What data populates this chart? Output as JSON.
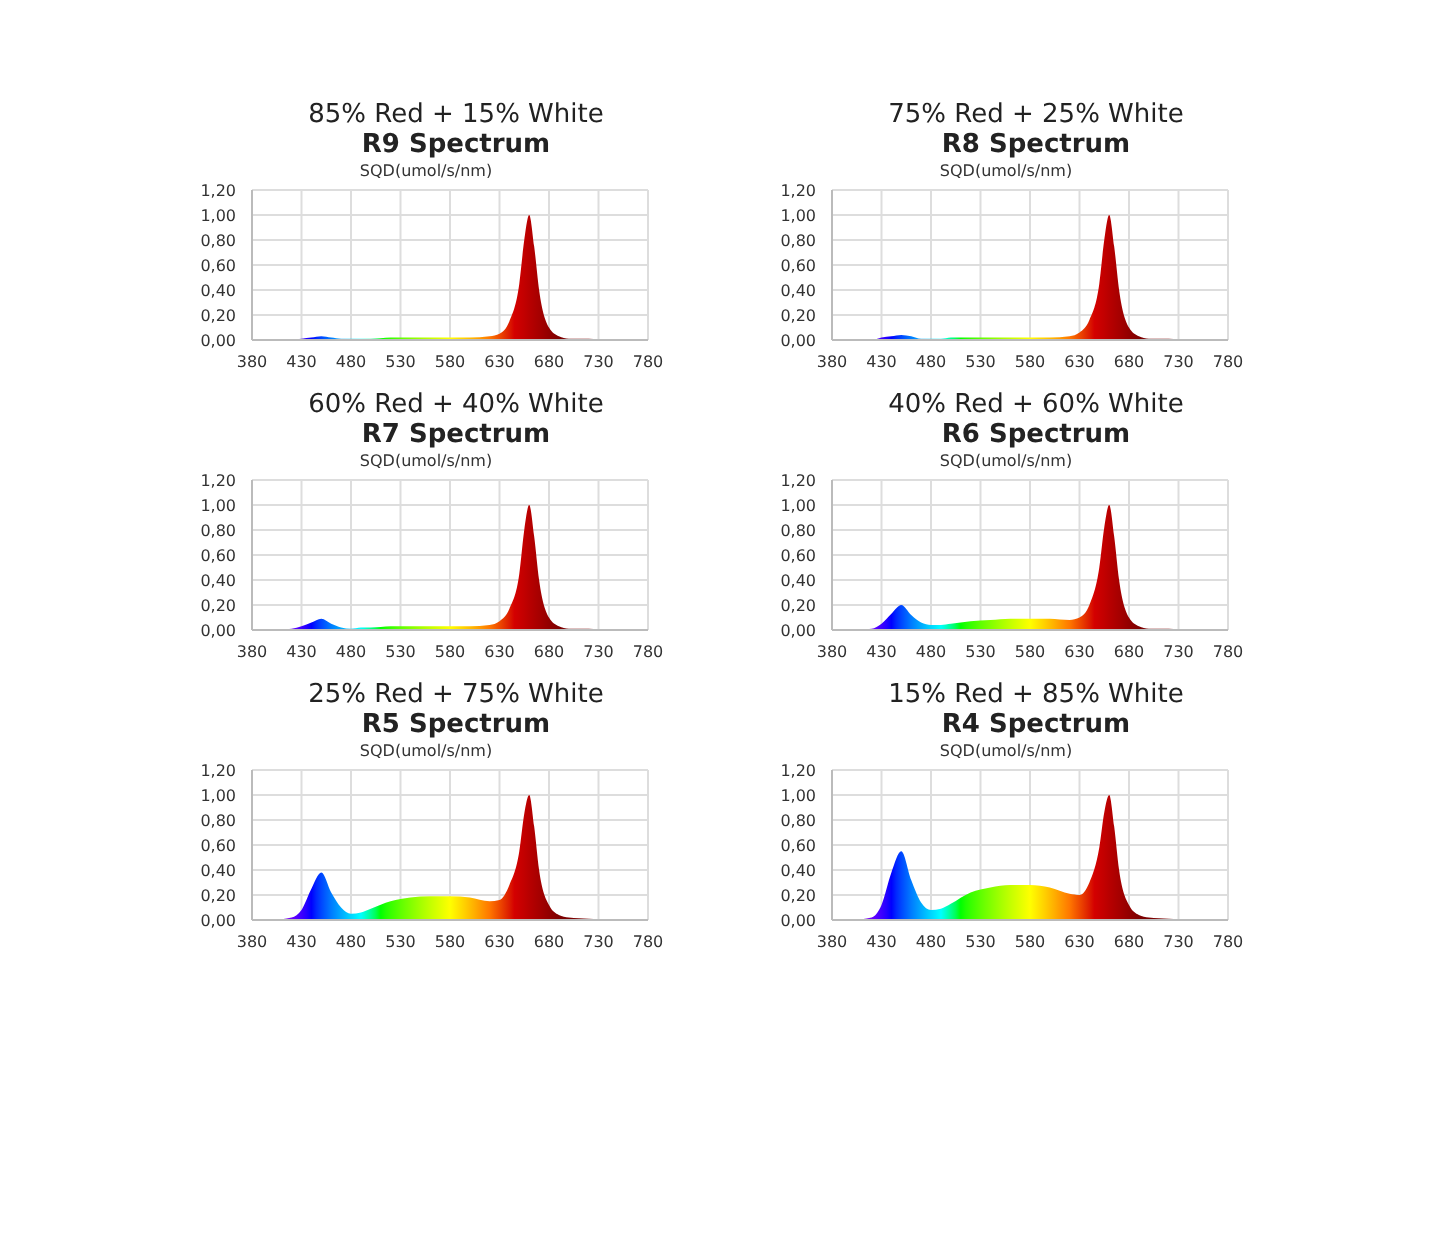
{
  "chart_data": [
    {
      "type": "area",
      "title": "85% Red + 15% White",
      "subtitle": "R9 Spectrum",
      "ylabel": "SQD(umol/s/nm)",
      "grid": true,
      "xlim": [
        380,
        780
      ],
      "xticks": [
        380,
        430,
        480,
        530,
        580,
        630,
        680,
        730,
        780
      ],
      "ylim": [
        0,
        1.2
      ],
      "yticks": [
        {
          "value": 0,
          "label": "0,00"
        },
        {
          "value": 0.2,
          "label": "0,20"
        },
        {
          "value": 0.4,
          "label": "0,40"
        },
        {
          "value": 0.6,
          "label": "0,60"
        },
        {
          "value": 0.8,
          "label": "0,80"
        },
        {
          "value": 1,
          "label": "1,00"
        },
        {
          "value": 1.2,
          "label": "1,20"
        }
      ],
      "x": [
        400,
        420,
        430,
        440,
        450,
        460,
        470,
        480,
        490,
        500,
        520,
        540,
        560,
        580,
        600,
        620,
        630,
        640,
        650,
        655,
        660,
        665,
        670,
        680,
        690,
        700,
        720,
        740,
        760,
        780
      ],
      "values": [
        0,
        0,
        0.01,
        0.02,
        0.03,
        0.02,
        0.01,
        0.01,
        0.01,
        0.01,
        0.02,
        0.02,
        0.02,
        0.02,
        0.02,
        0.03,
        0.05,
        0.15,
        0.45,
        0.8,
        1.0,
        0.75,
        0.4,
        0.1,
        0.03,
        0.01,
        0.01,
        0,
        0,
        0
      ]
    },
    {
      "type": "area",
      "title": "75% Red + 25% White",
      "subtitle": "R8 Spectrum",
      "ylabel": "SQD(umol/s/nm)",
      "grid": true,
      "xlim": [
        380,
        780
      ],
      "xticks": [
        380,
        430,
        480,
        530,
        580,
        630,
        680,
        730,
        780
      ],
      "ylim": [
        0,
        1.2
      ],
      "yticks": [
        {
          "value": 0,
          "label": "0,00"
        },
        {
          "value": 0.2,
          "label": "0,20"
        },
        {
          "value": 0.4,
          "label": "0,40"
        },
        {
          "value": 0.6,
          "label": "0,60"
        },
        {
          "value": 0.8,
          "label": "0,80"
        },
        {
          "value": 1,
          "label": "1,00"
        },
        {
          "value": 1.2,
          "label": "1,20"
        }
      ],
      "x": [
        400,
        420,
        430,
        440,
        450,
        460,
        470,
        480,
        490,
        500,
        520,
        540,
        560,
        580,
        600,
        620,
        630,
        640,
        650,
        655,
        660,
        665,
        670,
        680,
        690,
        700,
        720,
        740,
        760,
        780
      ],
      "values": [
        0,
        0,
        0.02,
        0.03,
        0.04,
        0.03,
        0.01,
        0.01,
        0.01,
        0.02,
        0.02,
        0.02,
        0.02,
        0.02,
        0.02,
        0.03,
        0.06,
        0.16,
        0.45,
        0.8,
        1.0,
        0.75,
        0.4,
        0.1,
        0.03,
        0.01,
        0.01,
        0,
        0,
        0
      ]
    },
    {
      "type": "area",
      "title": "60% Red + 40% White",
      "subtitle": "R7 Spectrum",
      "ylabel": "SQD(umol/s/nm)",
      "grid": true,
      "xlim": [
        380,
        780
      ],
      "xticks": [
        380,
        430,
        480,
        530,
        580,
        630,
        680,
        730,
        780
      ],
      "ylim": [
        0,
        1.2
      ],
      "yticks": [
        {
          "value": 0,
          "label": "0,00"
        },
        {
          "value": 0.2,
          "label": "0,20"
        },
        {
          "value": 0.4,
          "label": "0,40"
        },
        {
          "value": 0.6,
          "label": "0,60"
        },
        {
          "value": 0.8,
          "label": "0,80"
        },
        {
          "value": 1,
          "label": "1,00"
        },
        {
          "value": 1.2,
          "label": "1,20"
        }
      ],
      "x": [
        400,
        420,
        430,
        440,
        450,
        460,
        470,
        480,
        490,
        500,
        520,
        540,
        560,
        580,
        600,
        620,
        630,
        640,
        650,
        655,
        660,
        665,
        670,
        680,
        690,
        700,
        720,
        740,
        760,
        780
      ],
      "values": [
        0,
        0.01,
        0.03,
        0.06,
        0.09,
        0.05,
        0.02,
        0.01,
        0.02,
        0.02,
        0.03,
        0.03,
        0.03,
        0.03,
        0.03,
        0.04,
        0.07,
        0.17,
        0.45,
        0.8,
        1.0,
        0.75,
        0.4,
        0.1,
        0.03,
        0.01,
        0.01,
        0,
        0,
        0
      ]
    },
    {
      "type": "area",
      "title": "40% Red + 60% White",
      "subtitle": "R6 Spectrum",
      "ylabel": "SQD(umol/s/nm)",
      "grid": true,
      "xlim": [
        380,
        780
      ],
      "xticks": [
        380,
        430,
        480,
        530,
        580,
        630,
        680,
        730,
        780
      ],
      "ylim": [
        0,
        1.2
      ],
      "yticks": [
        {
          "value": 0,
          "label": "0,00"
        },
        {
          "value": 0.2,
          "label": "0,20"
        },
        {
          "value": 0.4,
          "label": "0,40"
        },
        {
          "value": 0.6,
          "label": "0,60"
        },
        {
          "value": 0.8,
          "label": "0,80"
        },
        {
          "value": 1,
          "label": "1,00"
        },
        {
          "value": 1.2,
          "label": "1,20"
        }
      ],
      "x": [
        400,
        420,
        430,
        440,
        450,
        460,
        470,
        480,
        490,
        500,
        520,
        540,
        560,
        580,
        600,
        620,
        630,
        640,
        650,
        655,
        660,
        665,
        670,
        680,
        690,
        700,
        720,
        740,
        760,
        780
      ],
      "values": [
        0,
        0.01,
        0.05,
        0.13,
        0.2,
        0.12,
        0.06,
        0.04,
        0.04,
        0.05,
        0.07,
        0.08,
        0.09,
        0.09,
        0.09,
        0.08,
        0.1,
        0.2,
        0.5,
        0.82,
        1.0,
        0.75,
        0.4,
        0.1,
        0.03,
        0.01,
        0.01,
        0,
        0,
        0
      ]
    },
    {
      "type": "area",
      "title": "25% Red + 75% White",
      "subtitle": "R5 Spectrum",
      "ylabel": "SQD(umol/s/nm)",
      "grid": true,
      "xlim": [
        380,
        780
      ],
      "xticks": [
        380,
        430,
        480,
        530,
        580,
        630,
        680,
        730,
        780
      ],
      "ylim": [
        0,
        1.2
      ],
      "yticks": [
        {
          "value": 0,
          "label": "0,00"
        },
        {
          "value": 0.2,
          "label": "0,20"
        },
        {
          "value": 0.4,
          "label": "0,40"
        },
        {
          "value": 0.6,
          "label": "0,60"
        },
        {
          "value": 0.8,
          "label": "0,80"
        },
        {
          "value": 1,
          "label": "1,00"
        },
        {
          "value": 1.2,
          "label": "1,20"
        }
      ],
      "x": [
        400,
        420,
        430,
        440,
        450,
        460,
        470,
        480,
        490,
        500,
        520,
        540,
        560,
        580,
        600,
        620,
        630,
        640,
        650,
        655,
        660,
        665,
        670,
        680,
        690,
        700,
        720,
        740,
        760,
        780
      ],
      "values": [
        0,
        0.02,
        0.08,
        0.25,
        0.38,
        0.22,
        0.1,
        0.05,
        0.06,
        0.09,
        0.15,
        0.18,
        0.19,
        0.19,
        0.18,
        0.15,
        0.16,
        0.28,
        0.55,
        0.85,
        1.0,
        0.75,
        0.4,
        0.12,
        0.04,
        0.02,
        0.01,
        0,
        0,
        0
      ]
    },
    {
      "type": "area",
      "title": "15% Red + 85% White",
      "subtitle": "R4 Spectrum",
      "ylabel": "SQD(umol/s/nm)",
      "grid": true,
      "xlim": [
        380,
        780
      ],
      "xticks": [
        380,
        430,
        480,
        530,
        580,
        630,
        680,
        730,
        780
      ],
      "ylim": [
        0,
        1.2
      ],
      "yticks": [
        {
          "value": 0,
          "label": "0,00"
        },
        {
          "value": 0.2,
          "label": "0,20"
        },
        {
          "value": 0.4,
          "label": "0,40"
        },
        {
          "value": 0.6,
          "label": "0,60"
        },
        {
          "value": 0.8,
          "label": "0,80"
        },
        {
          "value": 1,
          "label": "1,00"
        },
        {
          "value": 1.2,
          "label": "1,20"
        }
      ],
      "x": [
        400,
        420,
        430,
        440,
        450,
        460,
        470,
        480,
        490,
        500,
        520,
        540,
        560,
        580,
        600,
        620,
        630,
        640,
        650,
        655,
        660,
        665,
        670,
        680,
        690,
        700,
        720,
        740,
        760,
        780
      ],
      "values": [
        0,
        0.02,
        0.12,
        0.38,
        0.55,
        0.32,
        0.14,
        0.08,
        0.09,
        0.13,
        0.22,
        0.26,
        0.28,
        0.28,
        0.26,
        0.21,
        0.2,
        0.3,
        0.58,
        0.86,
        1.0,
        0.75,
        0.4,
        0.12,
        0.04,
        0.02,
        0.01,
        0,
        0,
        0
      ]
    }
  ]
}
